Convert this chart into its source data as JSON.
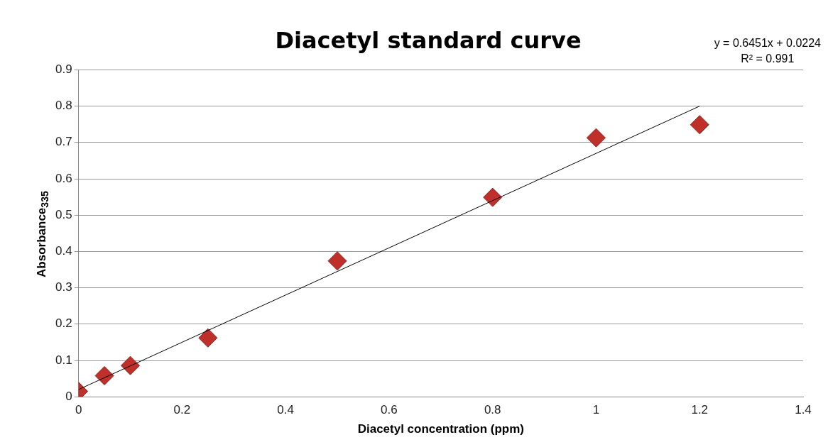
{
  "chart_data": {
    "type": "scatter",
    "title": "Diacetyl standard curve",
    "xlabel": "Diacetyl concentration (ppm)",
    "ylabel": "Absorbance$_{335}$",
    "annotations": [
      "y = 0.6451x + 0.0224",
      "R² = 0.991"
    ],
    "xlim": [
      0,
      1.4
    ],
    "xticks": [
      0,
      0.2,
      0.4,
      0.6,
      0.8,
      1,
      1.2,
      1.4
    ],
    "ylim": [
      0,
      0.9
    ],
    "yticks": [
      0,
      0.1,
      0.2,
      0.3,
      0.4,
      0.5,
      0.6,
      0.7,
      0.8,
      0.9
    ],
    "grid": "y",
    "legend": false,
    "marker": "diamond",
    "series": [
      {
        "color": "#c0302a",
        "x": [
          0,
          0.05,
          0.1,
          0.25,
          0.5,
          0.8,
          1,
          1.2
        ],
        "values": [
          0.015,
          0.058,
          0.086,
          0.162,
          0.374,
          0.549,
          0.713,
          0.749
        ]
      },
      {
        "type": "line",
        "color": "#000000",
        "x": [
          0,
          1.2
        ],
        "values": [
          0.02,
          0.8
        ],
        "marker": "none",
        "line_style": "solid"
      }
    ]
  }
}
